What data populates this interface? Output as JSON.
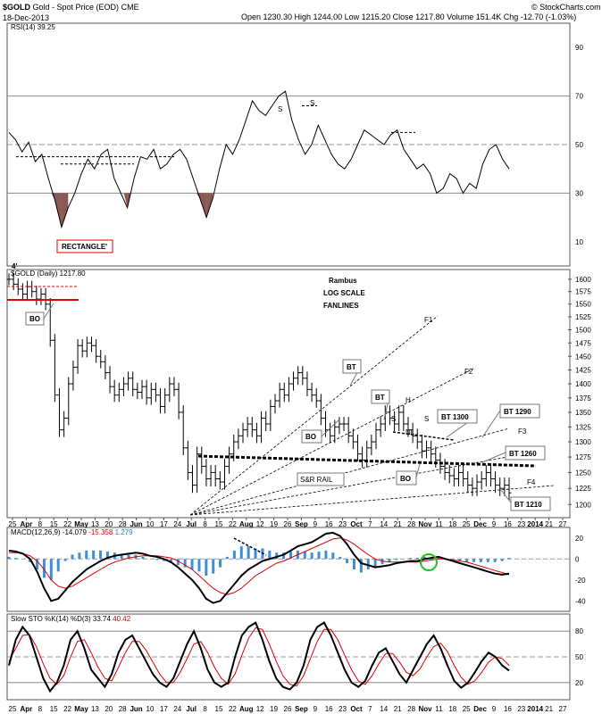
{
  "header": {
    "symbol": "$GOLD",
    "name": "Gold - Spot Price (EOD)",
    "exchange": "CME",
    "date": "18-Dec-2013",
    "quote": "Open 1230.30  High 1244.00  Low 1215.20  Close 1217.80  Volume 151.4K  Chg -12.70 (-1.03%)",
    "copyright": "© StockCharts.com"
  },
  "chart_data": [
    {
      "type": "line",
      "title": "RSI(14) 39.25",
      "ylim": [
        0,
        100
      ],
      "y_ticks": [
        10,
        30,
        50,
        70,
        90
      ],
      "annotations": [
        "S",
        "S"
      ],
      "values": [
        55,
        52,
        47,
        51,
        43,
        46,
        36,
        27,
        16,
        24,
        30,
        38,
        44,
        40,
        46,
        48,
        36,
        30,
        24,
        36,
        45,
        44,
        48,
        40,
        42,
        46,
        48,
        44,
        36,
        28,
        20,
        28,
        40,
        50,
        46,
        52,
        60,
        68,
        64,
        62,
        66,
        70,
        72,
        60,
        52,
        46,
        50,
        58,
        52,
        46,
        42,
        40,
        44,
        50,
        56,
        54,
        52,
        50,
        54,
        56,
        48,
        44,
        40,
        42,
        38,
        30,
        32,
        38,
        36,
        30,
        34,
        32,
        42,
        48,
        50,
        44,
        40
      ]
    },
    {
      "type": "ohlc",
      "title": "$GOLD (Daily) 1217.80",
      "scale": "log",
      "ylim": [
        1180,
        1620
      ],
      "y_ticks": [
        1200,
        1225,
        1250,
        1275,
        1300,
        1325,
        1350,
        1375,
        1400,
        1425,
        1450,
        1475,
        1500,
        1525,
        1550,
        1575,
        1600
      ],
      "x_ticks": [
        "25",
        "Apr",
        "8",
        "15",
        "22",
        "May",
        "13",
        "20",
        "28",
        "Jun",
        "10",
        "17",
        "24",
        "Jul",
        "8",
        "15",
        "22",
        "Aug",
        "12",
        "19",
        "26",
        "Sep",
        "9",
        "16",
        "23",
        "Oct",
        "7",
        "14",
        "21",
        "28",
        "Nov",
        "11",
        "18",
        "25",
        "Dec",
        "9",
        "16",
        "23",
        "2014",
        "21",
        "27"
      ],
      "annotations": [
        "Rambus",
        "LOG SCALE",
        "FANLINES",
        "RECTANGLE'",
        "4'",
        "BO",
        "BO",
        "BT",
        "BT",
        "BO",
        "S",
        "H",
        "S",
        "NL",
        "BT 1300",
        "BT 1290",
        "BT 1260",
        "BT 1210",
        "S&R RAIL",
        "F1",
        "F2",
        "F3",
        "F4"
      ],
      "closes": [
        1600,
        1590,
        1580,
        1570,
        1585,
        1575,
        1560,
        1570,
        1550,
        1480,
        1380,
        1320,
        1340,
        1400,
        1430,
        1470,
        1460,
        1475,
        1470,
        1450,
        1440,
        1420,
        1395,
        1380,
        1390,
        1400,
        1410,
        1390,
        1385,
        1395,
        1375,
        1390,
        1380,
        1360,
        1380,
        1400,
        1390,
        1350,
        1290,
        1250,
        1230,
        1280,
        1260,
        1240,
        1250,
        1240,
        1235,
        1260,
        1280,
        1300,
        1310,
        1320,
        1330,
        1320,
        1310,
        1340,
        1330,
        1360,
        1370,
        1390,
        1380,
        1400,
        1410,
        1420,
        1410,
        1390,
        1380,
        1370,
        1340,
        1320,
        1310,
        1325,
        1330,
        1330,
        1310,
        1300,
        1280,
        1270,
        1290,
        1300,
        1320,
        1330,
        1350,
        1340,
        1330,
        1350,
        1330,
        1320,
        1310,
        1300,
        1285,
        1290,
        1280,
        1270,
        1260,
        1250,
        1245,
        1240,
        1250,
        1240,
        1230,
        1225,
        1235,
        1240,
        1250,
        1240,
        1230,
        1225,
        1230,
        1218
      ]
    },
    {
      "type": "line",
      "title": "MACD(12,26,9)",
      "legend": [
        "-14.079",
        "-15.358",
        "1.279"
      ],
      "ylim": [
        -50,
        30
      ],
      "y_ticks": [
        -40,
        -20,
        0,
        20
      ],
      "macd": [
        8,
        7,
        5,
        0,
        -12,
        -28,
        -40,
        -38,
        -30,
        -22,
        -16,
        -10,
        -6,
        -2,
        1,
        3,
        4,
        5,
        6,
        5,
        3,
        2,
        0,
        -3,
        -8,
        -14,
        -20,
        -28,
        -38,
        -42,
        -40,
        -32,
        -24,
        -16,
        -10,
        -6,
        -2,
        0,
        2,
        4,
        8,
        12,
        14,
        16,
        20,
        24,
        25,
        22,
        14,
        4,
        -4,
        -6,
        -8,
        -7,
        -6,
        -4,
        -3,
        -2,
        -2,
        0,
        1,
        2,
        0,
        -2,
        -4,
        -6,
        -8,
        -10,
        -12,
        -14,
        -15,
        -14
      ],
      "signal": [
        6,
        6,
        5,
        3,
        -2,
        -10,
        -20,
        -26,
        -28,
        -26,
        -22,
        -18,
        -14,
        -10,
        -6,
        -3,
        -1,
        1,
        2,
        3,
        3,
        3,
        2,
        1,
        -2,
        -6,
        -10,
        -16,
        -22,
        -28,
        -32,
        -34,
        -32,
        -28,
        -22,
        -16,
        -12,
        -8,
        -4,
        -2,
        1,
        4,
        7,
        10,
        13,
        16,
        19,
        20,
        18,
        14,
        9,
        4,
        0,
        -2,
        -3,
        -3,
        -3,
        -3,
        -3,
        -2,
        -1,
        0,
        0,
        -1,
        -2,
        -3,
        -5,
        -7,
        -9,
        -11,
        -13,
        -15
      ]
    },
    {
      "type": "line",
      "title": "Slow STO %K(14) %D(3)",
      "legend": [
        "33.74",
        "40.42"
      ],
      "ylim": [
        0,
        100
      ],
      "y_ticks": [
        20,
        50,
        80
      ],
      "k": [
        40,
        70,
        85,
        75,
        50,
        25,
        10,
        20,
        40,
        70,
        80,
        60,
        35,
        25,
        15,
        30,
        55,
        70,
        75,
        60,
        45,
        30,
        20,
        15,
        25,
        45,
        65,
        80,
        60,
        35,
        20,
        15,
        20,
        50,
        75,
        85,
        90,
        70,
        45,
        25,
        15,
        12,
        20,
        40,
        70,
        85,
        90,
        75,
        55,
        35,
        20,
        15,
        22,
        40,
        55,
        60,
        45,
        30,
        20,
        35,
        50,
        65,
        75,
        60,
        40,
        22,
        14,
        20,
        32,
        45,
        55,
        50,
        40,
        34
      ],
      "d": [
        45,
        60,
        75,
        76,
        62,
        42,
        25,
        18,
        28,
        50,
        68,
        70,
        55,
        38,
        25,
        22,
        38,
        55,
        68,
        68,
        58,
        44,
        30,
        20,
        20,
        32,
        48,
        65,
        68,
        55,
        38,
        25,
        18,
        30,
        52,
        72,
        84,
        82,
        65,
        45,
        28,
        18,
        16,
        28,
        48,
        68,
        82,
        82,
        70,
        52,
        35,
        22,
        18,
        28,
        42,
        54,
        54,
        44,
        32,
        28,
        36,
        50,
        62,
        66,
        56,
        40,
        26,
        18,
        22,
        32,
        44,
        50,
        48,
        40
      ]
    }
  ]
}
